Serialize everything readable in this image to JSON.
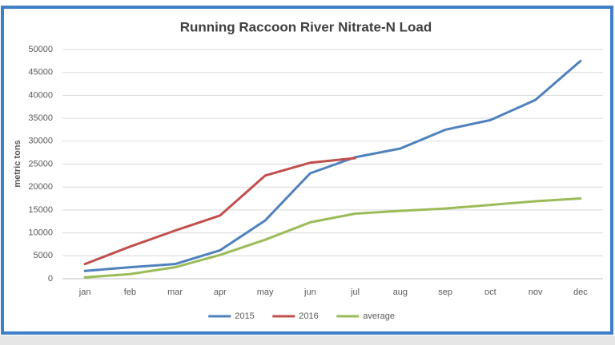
{
  "chart_data": {
    "type": "line",
    "title": "Running Raccoon River Nitrate-N Load",
    "y_label": "metric tons",
    "categories": [
      "jan",
      "feb",
      "mar",
      "apr",
      "may",
      "jun",
      "jul",
      "aug",
      "sep",
      "oct",
      "nov",
      "dec"
    ],
    "series": [
      {
        "name": "2015",
        "color": "#4f81bd",
        "values": [
          1700,
          2500,
          3200,
          6200,
          12700,
          23000,
          26500,
          28400,
          32500,
          34600,
          39000,
          47500
        ]
      },
      {
        "name": "2016",
        "color": "#c0504d",
        "values": [
          3200,
          7000,
          10500,
          13800,
          22500,
          25300,
          26300,
          null,
          null,
          null,
          null,
          null
        ]
      },
      {
        "name": "average",
        "color": "#9bbb59",
        "values": [
          300,
          1000,
          2500,
          5200,
          8500,
          12300,
          14200,
          14800,
          15300,
          16100,
          16900,
          17500
        ]
      }
    ],
    "ylim": [
      0,
      50000
    ],
    "yticks": [
      0,
      5000,
      10000,
      15000,
      20000,
      25000,
      30000,
      35000,
      40000,
      45000,
      50000
    ],
    "grid": true,
    "legend": "bottom"
  }
}
